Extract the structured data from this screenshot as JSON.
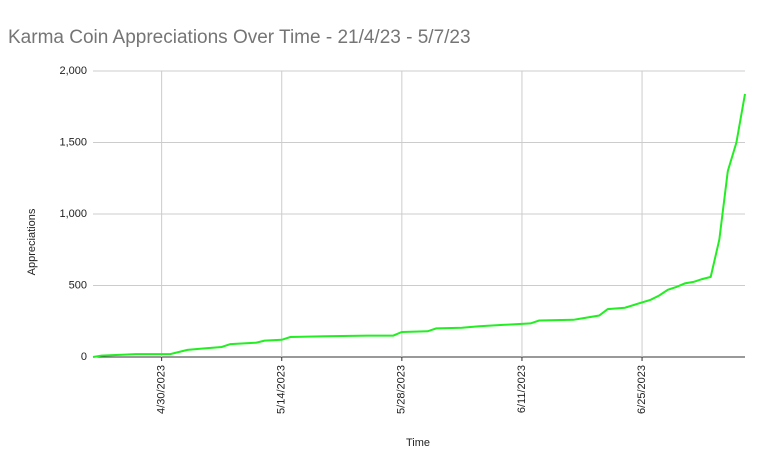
{
  "chart_data": {
    "type": "line",
    "title": "Karma Coin Appreciations Over Time - 21/4/23 - 5/7/23",
    "x_label": "Time",
    "y_label": "Appreciations",
    "x": [
      "4/22/2023",
      "4/23/2023",
      "4/25/2023",
      "4/27/2023",
      "5/1/2023",
      "5/2/2023",
      "5/3/2023",
      "5/5/2023",
      "5/7/2023",
      "5/8/2023",
      "5/11/2023",
      "5/12/2023",
      "5/14/2023",
      "5/15/2023",
      "5/19/2023",
      "5/24/2023",
      "5/27/2023",
      "5/28/2023",
      "5/31/2023",
      "6/1/2023",
      "6/4/2023",
      "6/6/2023",
      "6/9/2023",
      "6/12/2023",
      "6/13/2023",
      "6/17/2023",
      "6/18/2023",
      "6/20/2023",
      "6/21/2023",
      "6/23/2023",
      "6/26/2023",
      "6/27/2023",
      "6/28/2023",
      "6/29/2023",
      "6/30/2023",
      "7/1/2023",
      "7/2/2023",
      "7/3/2023",
      "7/4/2023",
      "7/5/2023",
      "7/6/2023",
      "7/7/2023"
    ],
    "series": [
      {
        "name": "Appreciations",
        "color": "#22ee22",
        "values": [
          0,
          10,
          15,
          20,
          20,
          35,
          50,
          60,
          70,
          90,
          100,
          115,
          120,
          140,
          145,
          150,
          150,
          175,
          180,
          200,
          205,
          215,
          225,
          235,
          255,
          260,
          270,
          290,
          335,
          345,
          400,
          430,
          470,
          490,
          515,
          525,
          545,
          560,
          820,
          1300,
          1500,
          1840
        ]
      }
    ],
    "xlim": [
      "4/22/2023",
      "7/7/2023"
    ],
    "xticks": [
      "4/30/2023",
      "5/14/2023",
      "5/28/2023",
      "6/11/2023",
      "6/25/2023"
    ],
    "ylim": [
      0,
      2000
    ],
    "yticks": [
      0,
      500,
      {
        "value": 1000,
        "label": "1,000"
      },
      {
        "value": 1500,
        "label": "1,500"
      },
      {
        "value": 2000,
        "label": "2,000"
      }
    ],
    "grid": true
  }
}
